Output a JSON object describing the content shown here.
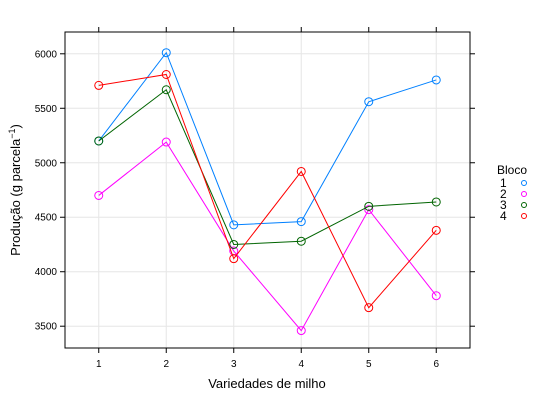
{
  "chart_data": {
    "type": "line",
    "title": "",
    "xlabel": "Variedades de milho",
    "ylabel_main": "Produção (g parcela",
    "ylabel_sup": "−1",
    "ylabel_close": ")",
    "x": [
      1,
      2,
      3,
      4,
      5,
      6
    ],
    "x_ticks": [
      "1",
      "2",
      "3",
      "4",
      "5",
      "6"
    ],
    "xlim": [
      0.5,
      6.5
    ],
    "y_ticks": [
      "3500",
      "4000",
      "4500",
      "5000",
      "5500",
      "6000"
    ],
    "ylim": [
      3300,
      6200
    ],
    "grid": true,
    "legend": {
      "title": "Bloco",
      "placement": "right"
    },
    "series": [
      {
        "name": "1",
        "color": "#0080ff",
        "values": [
          5200,
          6010,
          4430,
          4460,
          5560,
          5760
        ]
      },
      {
        "name": "2",
        "color": "#ff00ff",
        "values": [
          4700,
          5190,
          4190,
          3460,
          4570,
          3780
        ]
      },
      {
        "name": "3",
        "color": "#006400",
        "values": [
          5200,
          5670,
          4250,
          4280,
          4600,
          4640
        ]
      },
      {
        "name": "4",
        "color": "#ff0000",
        "values": [
          5710,
          5810,
          4120,
          4920,
          3670,
          4380
        ]
      }
    ]
  }
}
